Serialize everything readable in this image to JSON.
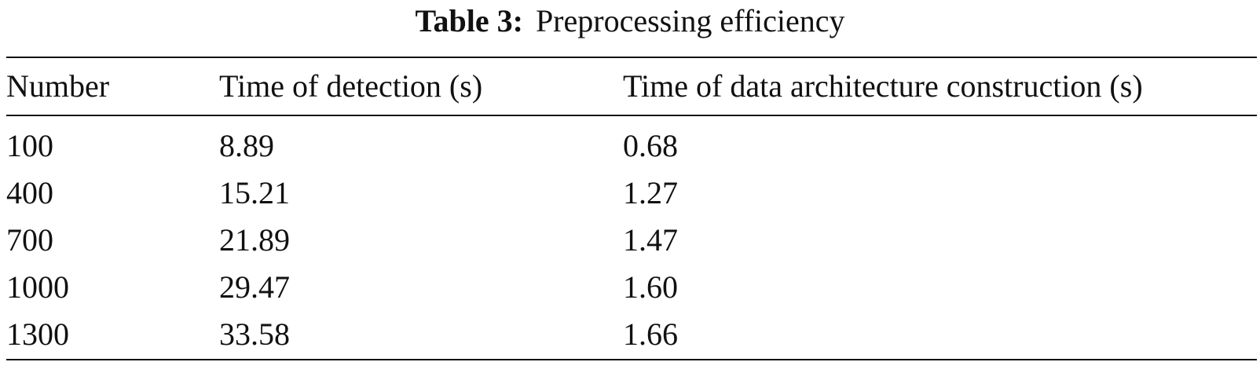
{
  "caption": {
    "label": "Table 3:",
    "text": "Preprocessing efficiency"
  },
  "table": {
    "headers": [
      "Number",
      "Time of detection (s)",
      "Time of data architecture construction (s)"
    ],
    "rows": [
      [
        "100",
        "8.89",
        "0.68"
      ],
      [
        "400",
        "15.21",
        "1.27"
      ],
      [
        "700",
        "21.89",
        "1.47"
      ],
      [
        "1000",
        "29.47",
        "1.60"
      ],
      [
        "1300",
        "33.58",
        "1.66"
      ]
    ]
  }
}
